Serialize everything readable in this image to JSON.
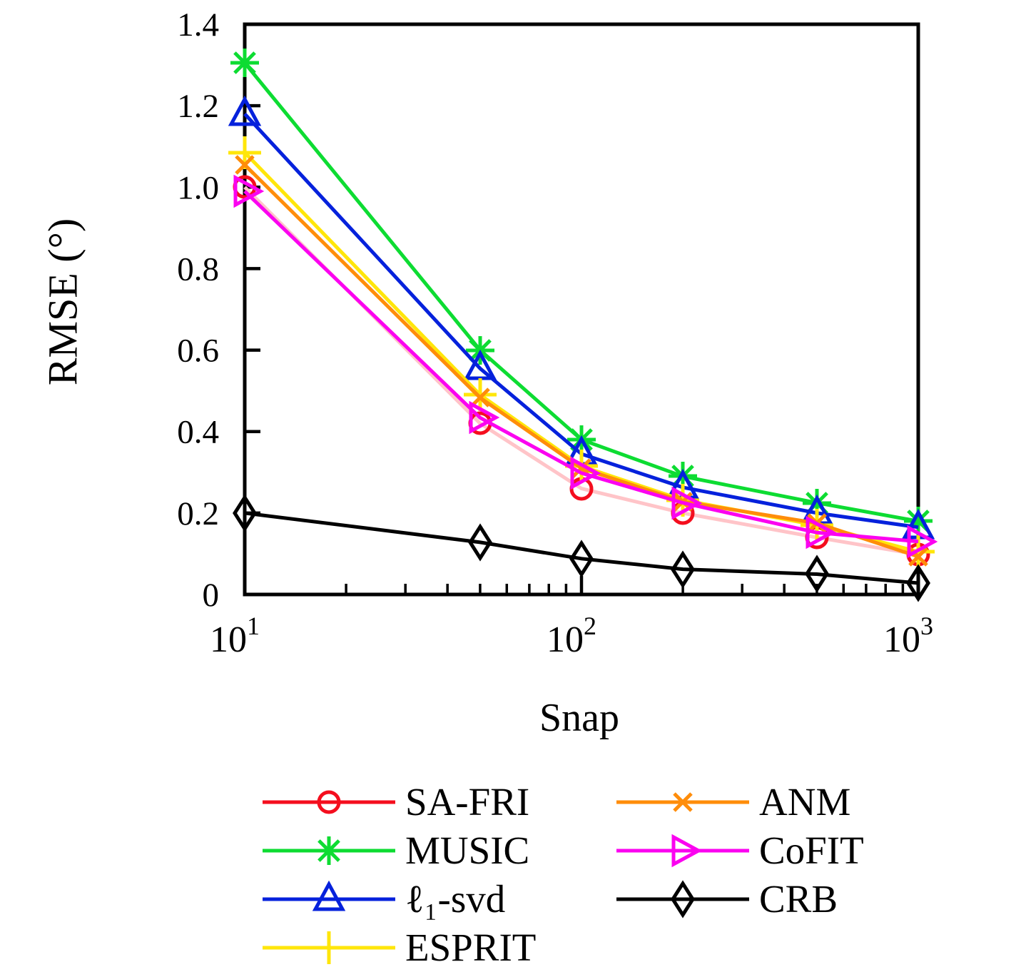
{
  "chart_data": {
    "type": "line",
    "title": "",
    "xlabel": "Snap",
    "ylabel": "RMSE (°)",
    "x_scale": "log",
    "xlim": [
      10,
      1000
    ],
    "ylim": [
      0,
      1.4
    ],
    "grid": false,
    "legend_position": "below-two-columns",
    "background": "#ffffff",
    "axis_color": "#000000",
    "x_ticks": [
      {
        "value": 10,
        "base": "10",
        "exp": "1",
        "label": "10¹"
      },
      {
        "value": 100,
        "base": "10",
        "exp": "2",
        "label": "10²"
      },
      {
        "value": 1000,
        "base": "10",
        "exp": "3",
        "label": "10³"
      }
    ],
    "y_ticks": [
      {
        "value": 0,
        "label": "0"
      },
      {
        "value": 0.2,
        "label": "0.2"
      },
      {
        "value": 0.4,
        "label": "0.4"
      },
      {
        "value": 0.6,
        "label": "0.6"
      },
      {
        "value": 0.8,
        "label": "0.8"
      },
      {
        "value": 1.0,
        "label": "1.0"
      },
      {
        "value": 1.2,
        "label": "1.2"
      },
      {
        "value": 1.4,
        "label": "1.4"
      }
    ],
    "x": [
      10,
      50,
      100,
      200,
      500,
      1000
    ],
    "series": [
      {
        "name": "SA-FRI",
        "marker": "circle",
        "color": "#f40e1e",
        "line_color": "#ffc4c8",
        "values": [
          1.0,
          0.42,
          0.26,
          0.2,
          0.14,
          0.098
        ]
      },
      {
        "name": "MUSIC",
        "marker": "asterisk",
        "color": "#0ddc32",
        "line_color": "#0ddc32",
        "values": [
          1.305,
          0.6,
          0.38,
          0.29,
          0.225,
          0.18
        ]
      },
      {
        "name": "ℓ₁-svd",
        "marker": "triangle-up",
        "color": "#0521dc",
        "line_color": "#0521dc",
        "values": [
          1.18,
          0.555,
          0.345,
          0.263,
          0.2,
          0.165
        ]
      },
      {
        "name": "ESPRIT",
        "marker": "plus",
        "color": "#ffe60a",
        "line_color": "#ffe60a",
        "values": [
          1.085,
          0.49,
          0.315,
          0.232,
          0.17,
          0.105
        ]
      },
      {
        "name": "ANM",
        "marker": "x",
        "color": "#ff8d0a",
        "line_color": "#ff8d0a",
        "values": [
          1.055,
          0.483,
          0.31,
          0.228,
          0.175,
          0.093
        ]
      },
      {
        "name": "CoFIT",
        "marker": "triangle-right",
        "color": "#fb02f0",
        "line_color": "#fb02f0",
        "values": [
          0.99,
          0.434,
          0.298,
          0.225,
          0.152,
          0.13
        ]
      },
      {
        "name": "CRB",
        "marker": "diamond",
        "color": "#000000",
        "line_color": "#000000",
        "values": [
          0.2,
          0.128,
          0.088,
          0.062,
          0.05,
          0.028
        ]
      }
    ],
    "legend_columns": [
      [
        "SA-FRI",
        "MUSIC",
        "ℓ₁-svd",
        "ESPRIT"
      ],
      [
        "ANM",
        "CoFIT",
        "CRB"
      ]
    ]
  }
}
